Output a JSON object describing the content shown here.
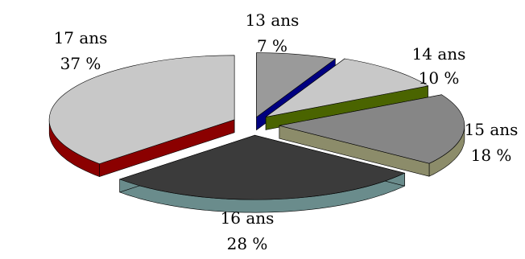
{
  "chart_data": {
    "type": "pie",
    "style": "3d-exploded",
    "title": "",
    "slices": [
      {
        "label": "13 ans",
        "value": 7,
        "value_text": "7 %",
        "top_color": "#9a9a9a",
        "side_color": "#000080"
      },
      {
        "label": "14 ans",
        "value": 10,
        "value_text": "10 %",
        "top_color": "#c8c8c8",
        "side_color": "#4a6400"
      },
      {
        "label": "15 ans",
        "value": 18,
        "value_text": "18 %",
        "top_color": "#868686",
        "side_color": "#8c8c6a"
      },
      {
        "label": "16 ans",
        "value": 28,
        "value_text": "28 %",
        "top_color": "#3b3b3b",
        "side_color": "#6a8c8c"
      },
      {
        "label": "17 ans",
        "value": 37,
        "value_text": "37 %",
        "top_color": "#c8c8c8",
        "side_color": "#8b0000"
      }
    ]
  }
}
